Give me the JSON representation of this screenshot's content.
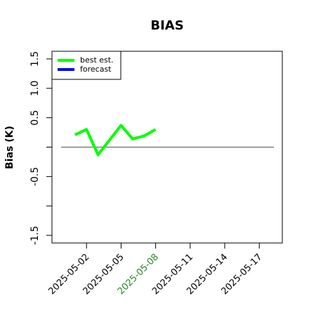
{
  "chart_data": {
    "type": "line",
    "title": "BIAS",
    "y_label": "Bias (K)",
    "x": [
      "2025-05-01",
      "2025-05-02",
      "2025-05-03",
      "2025-05-04",
      "2025-05-05",
      "2025-05-06",
      "2025-05-07",
      "2025-05-08"
    ],
    "series": [
      {
        "name": "best est.",
        "color": "#00ff00",
        "values": [
          0.21,
          0.3,
          -0.13,
          0.12,
          0.37,
          0.14,
          0.19,
          0.3
        ]
      },
      {
        "name": "forecast",
        "color": "#0000ff",
        "values": [
          null,
          null,
          null,
          null,
          null,
          null,
          null,
          null
        ]
      }
    ],
    "xlim": [
      "2025-04-29",
      "2025-05-19"
    ],
    "xticks": [
      "2025-05-02",
      "2025-05-05",
      "2025-05-08",
      "2025-05-11",
      "2025-05-14",
      "2025-05-17"
    ],
    "xtick_colors": [
      "#000000",
      "#000000",
      "#228b22",
      "#000000",
      "#000000",
      "#000000"
    ],
    "ylim": [
      -1.63,
      1.63
    ],
    "yticks": [
      -1.5,
      {
        "value": -1,
        "label": null
      },
      -0.5,
      {
        "value": 0,
        "label": null
      },
      0.5,
      {
        "value": 1,
        "label": "1.0"
      },
      1.5
    ],
    "hline": 0,
    "hline_color": "#555555",
    "legend": "top-left"
  }
}
